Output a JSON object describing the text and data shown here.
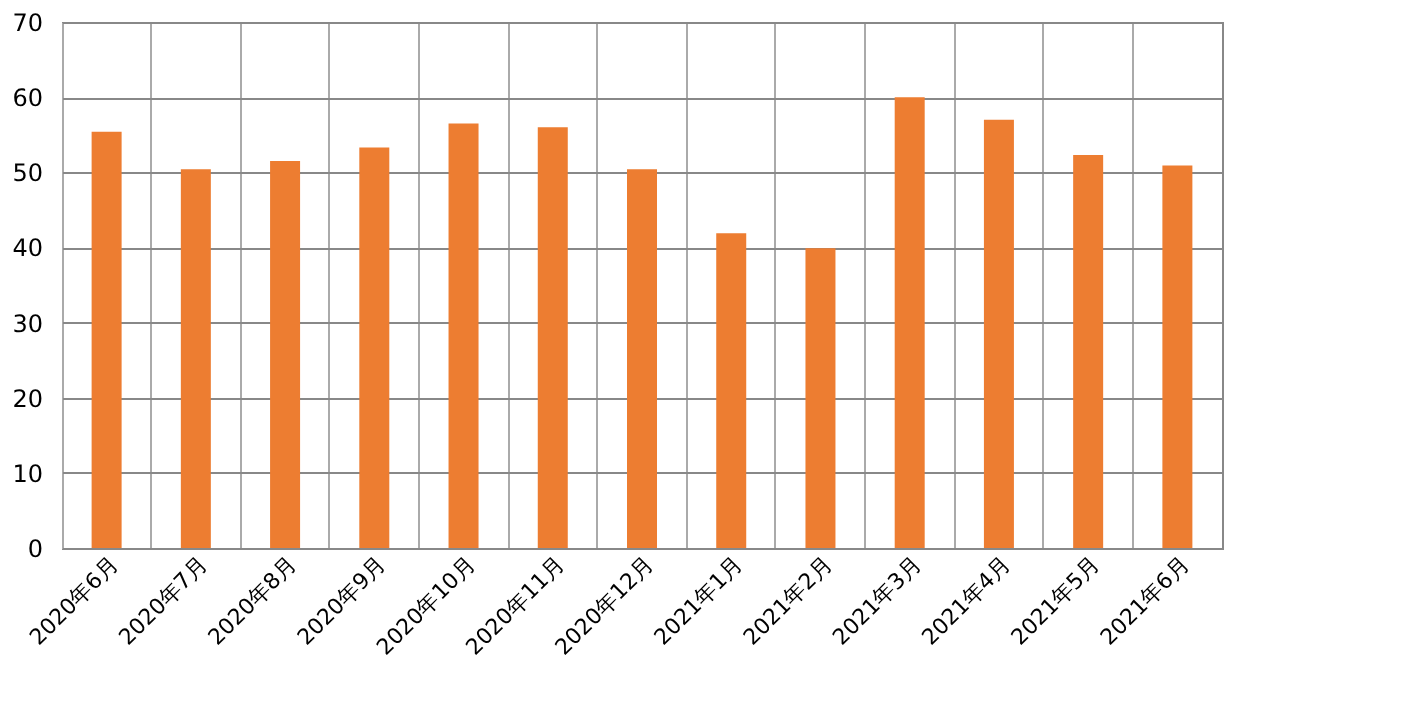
{
  "chart_data": {
    "type": "bar",
    "categories": [
      "2020年6月",
      "2020年7月",
      "2020年8月",
      "2020年9月",
      "2020年10月",
      "2020年11月",
      "2020年12月",
      "2021年1月",
      "2021年2月",
      "2021年3月",
      "2021年4月",
      "2021年5月",
      "2021年6月"
    ],
    "values": [
      55.4,
      50.4,
      51.5,
      53.3,
      56.5,
      56.0,
      50.4,
      41.9,
      39.9,
      60.0,
      57.0,
      52.3,
      50.9
    ],
    "color": "#ed7d31",
    "ylim": [
      0,
      70
    ],
    "yticks": [
      0,
      10,
      20,
      30,
      40,
      50,
      60,
      70
    ],
    "grid": true
  }
}
